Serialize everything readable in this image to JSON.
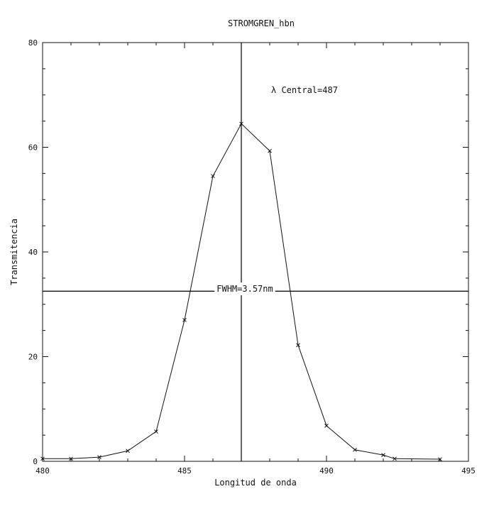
{
  "chart_data": {
    "type": "line",
    "title": "STROMGREN_hbn",
    "xlabel": "Longitud de onda",
    "ylabel": "Transmitencia",
    "xlim": [
      480,
      495
    ],
    "ylim": [
      0,
      80
    ],
    "x_ticks": [
      480,
      485,
      490,
      495
    ],
    "x_tick_labels": [
      "480",
      "485",
      "490",
      "495"
    ],
    "y_ticks": [
      0,
      20,
      40,
      60,
      80
    ],
    "y_tick_labels": [
      "0",
      "20",
      "40",
      "60",
      "80"
    ],
    "grid": false,
    "legend": "none",
    "series": [
      {
        "x": [
          480,
          481,
          482,
          483,
          484,
          485,
          486,
          487,
          488,
          489,
          490,
          491,
          492,
          492.4,
          494
        ],
        "y": [
          0.5,
          0.5,
          0.8,
          2.0,
          5.7,
          27,
          54.5,
          64.5,
          59.3,
          22.2,
          6.8,
          2.2,
          1.2,
          0.5,
          0.4
        ]
      }
    ],
    "vertical_line_x": 487,
    "horizontal_line_y": 32.5,
    "annotations": {
      "central": "λ Central=487",
      "fwhm": "FWHM=3.57nm"
    }
  }
}
